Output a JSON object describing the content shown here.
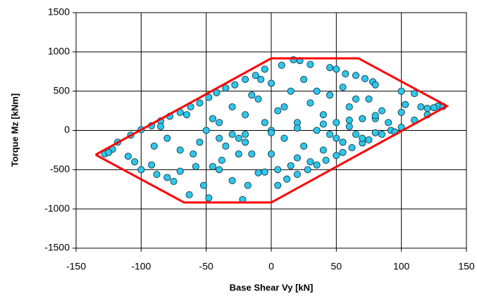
{
  "chart_data": {
    "type": "scatter",
    "xlabel": "Base Shear  Vy [kN]",
    "ylabel": "Torque  Mz [kNm]",
    "xlim": [
      -150,
      150
    ],
    "ylim": [
      -1500,
      1500
    ],
    "xticks": [
      -150,
      -100,
      -50,
      0,
      50,
      100,
      150
    ],
    "yticks": [
      -1500,
      -1000,
      -500,
      0,
      500,
      1000,
      1500
    ],
    "grid": true,
    "series": [
      {
        "type": "scatter",
        "color": "#2ec7ea",
        "edgecolor": "#123a4e",
        "x": [
          -118,
          -108,
          -100,
          -92,
          -85,
          -78,
          -70,
          -62,
          -55,
          -48,
          -42,
          -35,
          -28,
          -20,
          -12,
          -5,
          8,
          17,
          22,
          30,
          45,
          50,
          57,
          65,
          72,
          78,
          80,
          100,
          110,
          103,
          115,
          128,
          132,
          120,
          110,
          100,
          92,
          85,
          75,
          70,
          62,
          55,
          50,
          42,
          35,
          28,
          20,
          12,
          5,
          -5,
          -10,
          -18,
          -22,
          -30,
          -38,
          -45,
          -48,
          -52,
          -58,
          -63,
          -70,
          -75,
          -80,
          -88,
          -92,
          -100,
          -105,
          -110,
          -122,
          -90,
          -80,
          -70,
          -60,
          -55,
          -50,
          -45,
          -40,
          -35,
          -30,
          -25,
          -20,
          -15,
          -10,
          -5,
          0,
          5,
          10,
          15,
          20,
          25,
          30,
          35,
          40,
          45,
          50,
          55,
          60,
          65,
          70,
          75,
          80,
          85,
          90,
          95,
          -85,
          -65,
          -40,
          -25,
          -15,
          0,
          10,
          20,
          30,
          40,
          50,
          60,
          70,
          80,
          15,
          25,
          35,
          45,
          55,
          65,
          -30,
          -20,
          0,
          5,
          -8,
          -40,
          -20,
          0,
          20,
          40,
          60,
          80,
          100,
          120,
          125,
          -128,
          -125
        ],
        "values": [
          -150,
          -60,
          10,
          60,
          120,
          180,
          230,
          300,
          350,
          420,
          480,
          540,
          580,
          650,
          700,
          780,
          830,
          900,
          890,
          840,
          800,
          780,
          720,
          700,
          660,
          620,
          580,
          500,
          470,
          330,
          300,
          310,
          305,
          200,
          130,
          40,
          0,
          -50,
          -120,
          -160,
          -220,
          -280,
          -320,
          -380,
          -440,
          -500,
          -560,
          -620,
          -700,
          -530,
          -540,
          -700,
          -880,
          -640,
          -380,
          -460,
          -860,
          -700,
          -460,
          -820,
          -520,
          -650,
          -600,
          -560,
          -440,
          -500,
          -400,
          -330,
          -240,
          -200,
          -100,
          -250,
          -300,
          -150,
          0,
          150,
          100,
          -200,
          300,
          -100,
          200,
          -300,
          400,
          100,
          -300,
          250,
          -100,
          500,
          100,
          -200,
          350,
          0,
          -250,
          450,
          100,
          -150,
          300,
          -50,
          150,
          400,
          -30,
          250,
          100,
          -20,
          50,
          200,
          -500,
          -300,
          450,
          600,
          300,
          -350,
          -400,
          200,
          -100,
          50,
          -100,
          150,
          -450,
          650,
          500,
          -50,
          550,
          400,
          -50,
          -150,
          0,
          -500,
          650,
          -100,
          -50,
          -30,
          30,
          80,
          130,
          190,
          230,
          280,
          290,
          -300,
          -280
        ]
      },
      {
        "type": "line",
        "color": "#ff0000",
        "x": [
          -135,
          -125,
          -67,
          0,
          135,
          125,
          67,
          0,
          -135
        ],
        "values": [
          -310,
          -400,
          -918,
          -918,
          310,
          400,
          918,
          918,
          -310
        ]
      }
    ]
  }
}
